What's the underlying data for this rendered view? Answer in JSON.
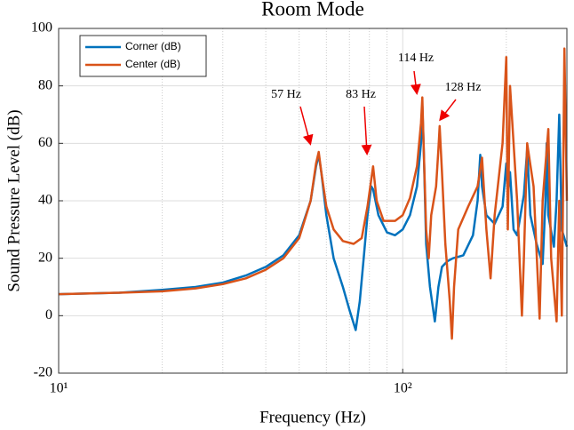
{
  "chart_data": {
    "type": "line",
    "title": "Room Mode",
    "x_label": "Frequency (Hz)",
    "y_label": "Sound Pressure Level (dB)",
    "xscale": "log",
    "xlim": [
      10,
      300
    ],
    "ylim": [
      -20,
      100
    ],
    "xticks": [
      {
        "value": 10,
        "label": "10¹"
      },
      {
        "value": 100,
        "label": "10²"
      }
    ],
    "xminorticks": [
      20,
      30,
      40,
      50,
      60,
      70,
      80,
      90,
      200,
      300
    ],
    "yticks": [
      -20,
      0,
      20,
      40,
      60,
      80,
      100
    ],
    "grid": true,
    "legend": "upper-left",
    "annotations": [
      "57 Hz",
      "83 Hz",
      "114 Hz",
      "128 Hz"
    ],
    "series": [
      {
        "name": "Corner (dB)",
        "color": "#0072bd",
        "x": [
          10,
          15,
          20,
          25,
          30,
          35,
          40,
          45,
          50,
          54,
          56,
          57,
          58,
          60,
          63,
          67,
          70,
          73,
          75,
          77,
          79,
          81,
          82,
          85,
          90,
          95,
          100,
          105,
          110,
          113,
          114,
          115,
          117,
          120,
          124,
          127,
          130,
          135,
          140,
          150,
          160,
          165,
          168,
          170,
          175,
          185,
          195,
          200,
          202,
          205,
          210,
          215,
          225,
          230,
          235,
          245,
          255,
          260,
          262,
          265,
          275,
          280,
          285,
          290,
          300
        ],
        "values": [
          7.5,
          8,
          9,
          10,
          11.5,
          14,
          17,
          21,
          28,
          40,
          52,
          56,
          50,
          35,
          20,
          10,
          2,
          -5,
          5,
          20,
          35,
          45,
          44,
          35,
          29,
          28,
          30,
          35,
          45,
          60,
          73,
          60,
          25,
          10,
          -2,
          10,
          17,
          19,
          20,
          21,
          28,
          40,
          56,
          45,
          35,
          32,
          38,
          53,
          42,
          50,
          30,
          28,
          42,
          58,
          35,
          25,
          18,
          40,
          60,
          35,
          24,
          40,
          70,
          30,
          24
        ]
      },
      {
        "name": "Center (dB)",
        "color": "#d95319",
        "x": [
          10,
          15,
          20,
          25,
          30,
          35,
          40,
          45,
          50,
          54,
          56,
          57,
          58,
          60,
          63,
          67,
          72,
          76,
          79,
          82,
          84,
          88,
          95,
          100,
          105,
          110,
          113,
          114,
          115,
          117,
          119,
          121,
          125,
          127,
          128,
          130,
          133,
          137,
          139,
          141,
          145,
          155,
          165,
          170,
          175,
          180,
          185,
          195,
          200,
          202,
          205,
          210,
          215,
          222,
          225,
          230,
          240,
          250,
          255,
          265,
          270,
          280,
          285,
          290,
          295,
          300
        ],
        "values": [
          7.5,
          8,
          8.5,
          9.5,
          11,
          13,
          16,
          20,
          27,
          40,
          53,
          57,
          50,
          38,
          30,
          26,
          25,
          27,
          38,
          52,
          40,
          33,
          33,
          35,
          41,
          52,
          67,
          76,
          60,
          30,
          20,
          35,
          45,
          58,
          66,
          50,
          25,
          5,
          -8,
          10,
          30,
          38,
          45,
          55,
          30,
          13,
          35,
          60,
          90,
          30,
          80,
          60,
          40,
          0,
          20,
          60,
          45,
          -1,
          40,
          65,
          20,
          -2,
          40,
          0,
          93,
          40
        ]
      }
    ]
  }
}
